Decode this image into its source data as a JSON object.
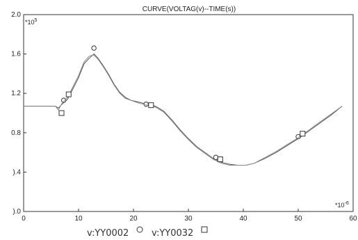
{
  "chart_data": {
    "type": "line",
    "title": "CURVE(VOLTAG(v)--TIME(s))",
    "x_exponent_label": "*10",
    "x_exponent": "-6",
    "y_exponent_label": "*10",
    "y_exponent": "5",
    "xlim": [
      0,
      60
    ],
    "ylim": [
      0.0,
      2.0
    ],
    "x_ticks": [
      0,
      10,
      20,
      30,
      40,
      50,
      60
    ],
    "x_tick_labels": [
      "0",
      "10",
      "20",
      "30",
      "40",
      "50",
      "60"
    ],
    "y_ticks": [
      0.0,
      0.4,
      0.8,
      1.2,
      1.6,
      2.0
    ],
    "y_tick_labels": [
      ").0",
      ").4",
      "0.8",
      "1.2",
      "1.6",
      "2.0"
    ],
    "grid": false,
    "legend_position": "bottom",
    "series": [
      {
        "name": "v:YY0002",
        "marker": "circle",
        "color": "#555555",
        "x": [
          0,
          2,
          4,
          5.8,
          6.3,
          7,
          8,
          9,
          10,
          11,
          12,
          12.8,
          13.5,
          14.5,
          15.5,
          16.5,
          17.5,
          18.5,
          19.5,
          21,
          22.5,
          24,
          25.5,
          27,
          28.5,
          30,
          31.5,
          33,
          34.5,
          36,
          37.5,
          39,
          40.5,
          42,
          44,
          46,
          48,
          50,
          52,
          54,
          56,
          58
        ],
        "y": [
          1.07,
          1.07,
          1.07,
          1.07,
          1.05,
          1.09,
          1.14,
          1.25,
          1.36,
          1.5,
          1.56,
          1.6,
          1.56,
          1.48,
          1.39,
          1.29,
          1.21,
          1.16,
          1.13,
          1.11,
          1.09,
          1.07,
          1.02,
          0.93,
          0.83,
          0.74,
          0.66,
          0.6,
          0.54,
          0.5,
          0.48,
          0.47,
          0.47,
          0.49,
          0.54,
          0.6,
          0.67,
          0.74,
          0.82,
          0.9,
          0.98,
          1.07
        ],
        "marker_points": [
          [
            7.3,
            1.13
          ],
          [
            12.8,
            1.66
          ],
          [
            22.3,
            1.09
          ],
          [
            35.0,
            0.55
          ],
          [
            50.0,
            0.76
          ]
        ]
      },
      {
        "name": "v:YY0032",
        "marker": "square",
        "color": "#888888",
        "x": [
          0,
          2,
          4,
          5.8,
          6.3,
          7,
          8,
          9,
          10,
          11,
          12,
          12.8,
          13.5,
          14.5,
          15.5,
          16.5,
          17.5,
          18.5,
          19.5,
          21,
          22.5,
          24,
          25.5,
          27,
          28.5,
          30,
          31.5,
          33,
          34.5,
          36,
          37.5,
          39,
          40.5,
          42,
          44,
          46,
          48,
          50,
          52,
          54,
          56,
          58
        ],
        "y": [
          1.07,
          1.07,
          1.07,
          1.07,
          1.03,
          1.1,
          1.16,
          1.27,
          1.38,
          1.52,
          1.58,
          1.59,
          1.55,
          1.47,
          1.38,
          1.28,
          1.2,
          1.15,
          1.13,
          1.1,
          1.08,
          1.06,
          1.01,
          0.92,
          0.82,
          0.73,
          0.65,
          0.59,
          0.53,
          0.49,
          0.47,
          0.47,
          0.47,
          0.49,
          0.55,
          0.61,
          0.68,
          0.75,
          0.83,
          0.91,
          0.99,
          1.07
        ],
        "marker_points": [
          [
            6.9,
            1.0
          ],
          [
            8.2,
            1.19
          ],
          [
            23.2,
            1.08
          ],
          [
            35.8,
            0.53
          ],
          [
            50.8,
            0.79
          ]
        ]
      }
    ]
  }
}
